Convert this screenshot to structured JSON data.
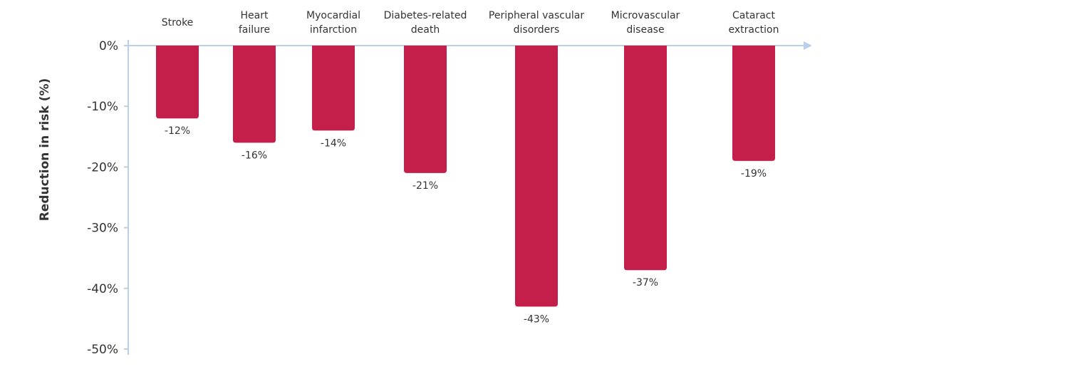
{
  "chart_data": {
    "type": "bar",
    "title": "",
    "xlabel": "",
    "ylabel": "Reduction in risk (%)",
    "ylim": [
      -50,
      0
    ],
    "yticks": [
      {
        "value": 0,
        "label": "0%"
      },
      {
        "value": -10,
        "label": "-10%"
      },
      {
        "value": -20,
        "label": "-20%"
      },
      {
        "value": -30,
        "label": "-30%"
      },
      {
        "value": -40,
        "label": "-40%"
      },
      {
        "value": -50,
        "label": "-50%"
      }
    ],
    "categories": [
      [
        "Stroke"
      ],
      [
        "Heart",
        "failure"
      ],
      [
        "Myocardial",
        "infarction"
      ],
      [
        "Diabetes-related",
        "death"
      ],
      [
        "Peripheral vascular",
        "disorders"
      ],
      [
        "Microvascular",
        "disease"
      ],
      [
        "Cataract",
        "extraction"
      ]
    ],
    "values": [
      -12,
      -16,
      -14,
      -21,
      -43,
      -37,
      -19
    ],
    "data_labels": [
      "-12%",
      "-16%",
      "-14%",
      "-21%",
      "-43%",
      "-37%",
      "-19%"
    ],
    "bar_color": "#c41e4a",
    "axis_color": "#b8d0ea",
    "grid": false,
    "legend": "none",
    "category_label_position": "top"
  }
}
